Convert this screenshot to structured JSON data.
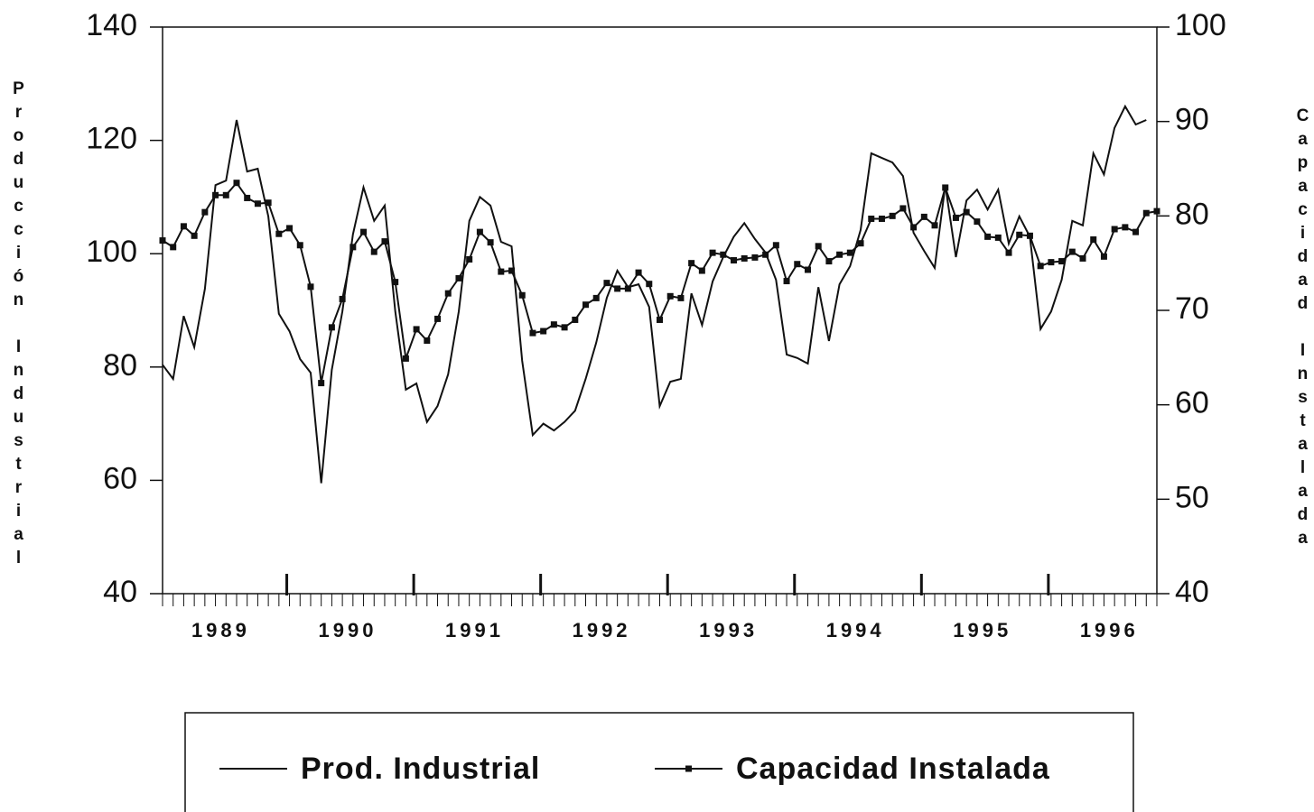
{
  "chart_data": {
    "type": "line",
    "y_label": "Producción Industrial",
    "y2_label": "Capacidad Instalada",
    "categories": [
      null,
      null,
      null,
      null,
      null,
      null,
      "1989",
      null,
      null,
      null,
      null,
      null,
      null,
      null,
      null,
      null,
      null,
      null,
      "1990",
      null,
      null,
      null,
      null,
      null,
      null,
      null,
      null,
      null,
      null,
      null,
      "1991",
      null,
      null,
      null,
      null,
      null,
      null,
      null,
      null,
      null,
      null,
      null,
      "1992",
      null,
      null,
      null,
      null,
      null,
      null,
      null,
      null,
      null,
      null,
      null,
      "1993",
      null,
      null,
      null,
      null,
      null,
      null,
      null,
      null,
      null,
      null,
      null,
      "1994",
      null,
      null,
      null,
      null,
      null,
      null,
      null,
      null,
      null,
      null,
      null,
      "1995",
      null,
      null,
      null,
      null,
      null,
      null,
      null,
      null,
      null,
      null,
      null,
      "1996",
      null,
      null,
      null,
      null
    ],
    "series": [
      {
        "name": "Prod. Industrial",
        "color": "#111111",
        "marker": "none",
        "values": [
          80.4,
          77.9,
          89,
          83.5,
          93.8,
          112.1,
          112.9,
          123.6,
          114.5,
          115,
          106.6,
          89.4,
          86.3,
          81.4,
          79,
          59.5,
          79.5,
          89.8,
          103.4,
          111.7,
          105.8,
          108.5,
          89.8,
          76,
          77.1,
          70.3,
          73.1,
          78.7,
          89.8,
          105.8,
          110,
          108.5,
          102.1,
          101.3,
          81.1,
          68,
          70,
          68.8,
          70.3,
          72.3,
          77.9,
          84.3,
          92.2,
          97,
          94.1,
          94.6,
          90.6,
          73.1,
          77.4,
          77.9,
          93,
          87.4,
          95.1,
          99.4,
          103,
          105.4,
          102.6,
          100.2,
          95.4,
          82.2,
          81.6,
          80.6,
          94.1,
          84.6,
          94.6,
          97.8,
          104.2,
          117.7,
          116.9,
          116.1,
          113.7,
          103.7,
          100.5,
          97.5,
          112.1,
          99.4,
          109.4,
          111.3,
          107.8,
          111.3,
          101.8,
          106.6,
          103,
          86.7,
          89.8,
          95.4,
          105.8,
          105,
          117.7,
          114,
          122.2,
          126,
          122.8,
          123.6,
          null
        ]
      },
      {
        "name": "Capacidad Instalada",
        "color": "#111111",
        "marker": "square",
        "axis": "y2",
        "values": [
          77.4,
          76.7,
          78.9,
          77.9,
          80.4,
          82.2,
          82.2,
          83.5,
          81.9,
          81.3,
          81.4,
          78.1,
          78.7,
          76.9,
          72.5,
          62.3,
          68.2,
          71.2,
          76.7,
          78.3,
          76.2,
          77.3,
          73,
          64.9,
          68,
          66.8,
          69.1,
          71.8,
          73.4,
          75.4,
          78.3,
          77.2,
          74.1,
          74.2,
          71.6,
          67.6,
          67.8,
          68.5,
          68.2,
          69,
          70.6,
          71.3,
          72.9,
          72.3,
          72.3,
          74,
          72.8,
          69,
          71.5,
          71.3,
          75,
          74.2,
          76.1,
          75.9,
          75.3,
          75.5,
          75.6,
          75.9,
          76.9,
          73.1,
          74.9,
          74.3,
          76.8,
          75.2,
          75.9,
          76.1,
          77.1,
          79.7,
          79.7,
          80,
          80.8,
          78.8,
          79.9,
          79,
          83,
          79.8,
          80.4,
          79.4,
          77.8,
          77.7,
          76.1,
          78,
          77.9,
          74.7,
          75.1,
          75.2,
          76.2,
          75.5,
          77.5,
          75.7,
          78.6,
          78.8,
          78.3,
          80.3,
          80.5
        ]
      }
    ],
    "ylim": [
      40,
      140
    ],
    "yticks": [
      40,
      60,
      80,
      100,
      120,
      140
    ],
    "y2lim": [
      40,
      100
    ],
    "y2ticks": [
      40,
      50,
      60,
      70,
      80,
      90,
      100
    ],
    "grid": false,
    "legend": "bottom"
  }
}
